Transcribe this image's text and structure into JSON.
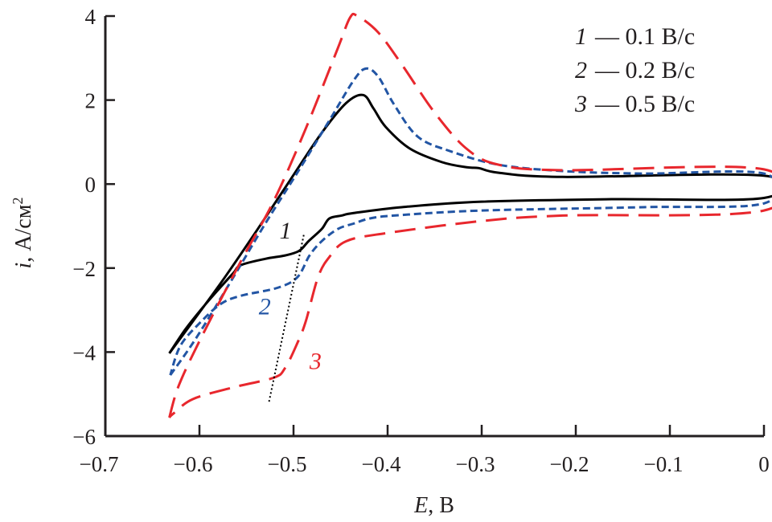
{
  "chart_data": {
    "type": "line",
    "title": "",
    "xlabel": "E, В",
    "xlabel_var": "E",
    "xlabel_unit": ", В",
    "ylabel_var": "i",
    "ylabel_unit": ", А/см",
    "ylabel_sup": "2",
    "xlim": [
      -0.7,
      0
    ],
    "ylim": [
      -6,
      4
    ],
    "xticks": [
      -0.7,
      -0.6,
      -0.5,
      -0.4,
      -0.3,
      -0.2,
      -0.1,
      0
    ],
    "xtick_labels": [
      "−0.7",
      "−0.6",
      "−0.5",
      "−0.4",
      "−0.3",
      "−0.2",
      "−0.1",
      "0"
    ],
    "yticks": [
      4,
      2,
      0,
      -2,
      -4,
      -6
    ],
    "ytick_labels": [
      "4",
      "2",
      "0",
      "−2",
      "−4",
      "−6"
    ],
    "grid": false,
    "legend_position": "top-right",
    "series": [
      {
        "name": "1",
        "legend": "— 0.1 В/с",
        "color": "#000000",
        "dash": "solid",
        "x": [
          -0.632,
          -0.607,
          -0.573,
          -0.538,
          -0.504,
          -0.47,
          -0.444,
          -0.426,
          -0.415,
          -0.402,
          -0.376,
          -0.342,
          -0.316,
          -0.303,
          -0.282,
          -0.214,
          0,
          0,
          -0.162,
          -0.3,
          -0.385,
          -0.436,
          -0.449,
          -0.462,
          -0.47,
          -0.484,
          -0.494,
          -0.509,
          -0.53,
          -0.556,
          -0.564,
          -0.581,
          -0.598,
          -0.615,
          -0.632
        ],
        "y": [
          -4.03,
          -3.27,
          -2.22,
          -1.07,
          0.08,
          1.22,
          1.93,
          2.12,
          1.8,
          1.36,
          0.84,
          0.52,
          0.4,
          0.38,
          0.27,
          0.17,
          0.2,
          -0.33,
          -0.36,
          -0.42,
          -0.55,
          -0.69,
          -0.75,
          -0.82,
          -1.07,
          -1.36,
          -1.59,
          -1.7,
          -1.78,
          -1.93,
          -2.12,
          -2.54,
          -2.98,
          -3.46,
          -4.03
        ]
      },
      {
        "name": "2",
        "legend": "— 0.2 В/с",
        "color": "#2255a4",
        "dash": "short",
        "x": [
          -0.631,
          -0.603,
          -0.564,
          -0.53,
          -0.496,
          -0.462,
          -0.436,
          -0.423,
          -0.41,
          -0.393,
          -0.368,
          -0.333,
          -0.282,
          -0.214,
          -0.128,
          0,
          0,
          -0.128,
          -0.3,
          -0.393,
          -0.419,
          -0.436,
          -0.453,
          -0.47,
          -0.483,
          -0.496,
          -0.517,
          -0.556,
          -0.577,
          -0.598,
          -0.62,
          -0.631
        ],
        "y": [
          -4.55,
          -3.65,
          -2.22,
          -0.94,
          0.27,
          1.51,
          2.47,
          2.75,
          2.56,
          1.89,
          1.13,
          0.78,
          0.46,
          0.31,
          0.25,
          0.25,
          -0.46,
          -0.55,
          -0.63,
          -0.75,
          -0.82,
          -0.94,
          -1.07,
          -1.36,
          -1.7,
          -2.22,
          -2.47,
          -2.66,
          -2.85,
          -3.27,
          -3.84,
          -4.55
        ]
      },
      {
        "name": "3",
        "legend": "— 0.5 В/с",
        "color": "#e8272d",
        "dash": "long",
        "x": [
          -0.632,
          -0.622,
          -0.598,
          -0.556,
          -0.521,
          -0.487,
          -0.453,
          -0.44,
          -0.432,
          -0.41,
          -0.385,
          -0.35,
          -0.316,
          -0.282,
          -0.214,
          0,
          0,
          -0.214,
          -0.3,
          -0.402,
          -0.444,
          -0.462,
          -0.474,
          -0.487,
          -0.496,
          -0.509,
          -0.521,
          -0.564,
          -0.607,
          -0.628,
          -0.632
        ],
        "y": [
          -5.56,
          -4.8,
          -3.65,
          -1.84,
          -0.4,
          1.32,
          3.23,
          3.96,
          4.0,
          3.61,
          2.85,
          1.7,
          0.84,
          0.46,
          0.33,
          0.35,
          -0.63,
          -0.75,
          -0.88,
          -1.17,
          -1.36,
          -1.74,
          -2.22,
          -3.27,
          -3.79,
          -4.38,
          -4.61,
          -4.84,
          -5.12,
          -5.47,
          -5.56
        ]
      }
    ],
    "annotations": [
      {
        "text": "1",
        "x": -0.515,
        "y": -1.3,
        "color": "#231f20"
      },
      {
        "text": "2",
        "x": -0.537,
        "y": -3.1,
        "color": "#2255a4"
      },
      {
        "text": "3",
        "x": -0.483,
        "y": -4.4,
        "color": "#e8272d"
      }
    ],
    "guide_line": {
      "x": [
        -0.526,
        -0.489
      ],
      "y": [
        -5.18,
        -1.2
      ]
    }
  }
}
